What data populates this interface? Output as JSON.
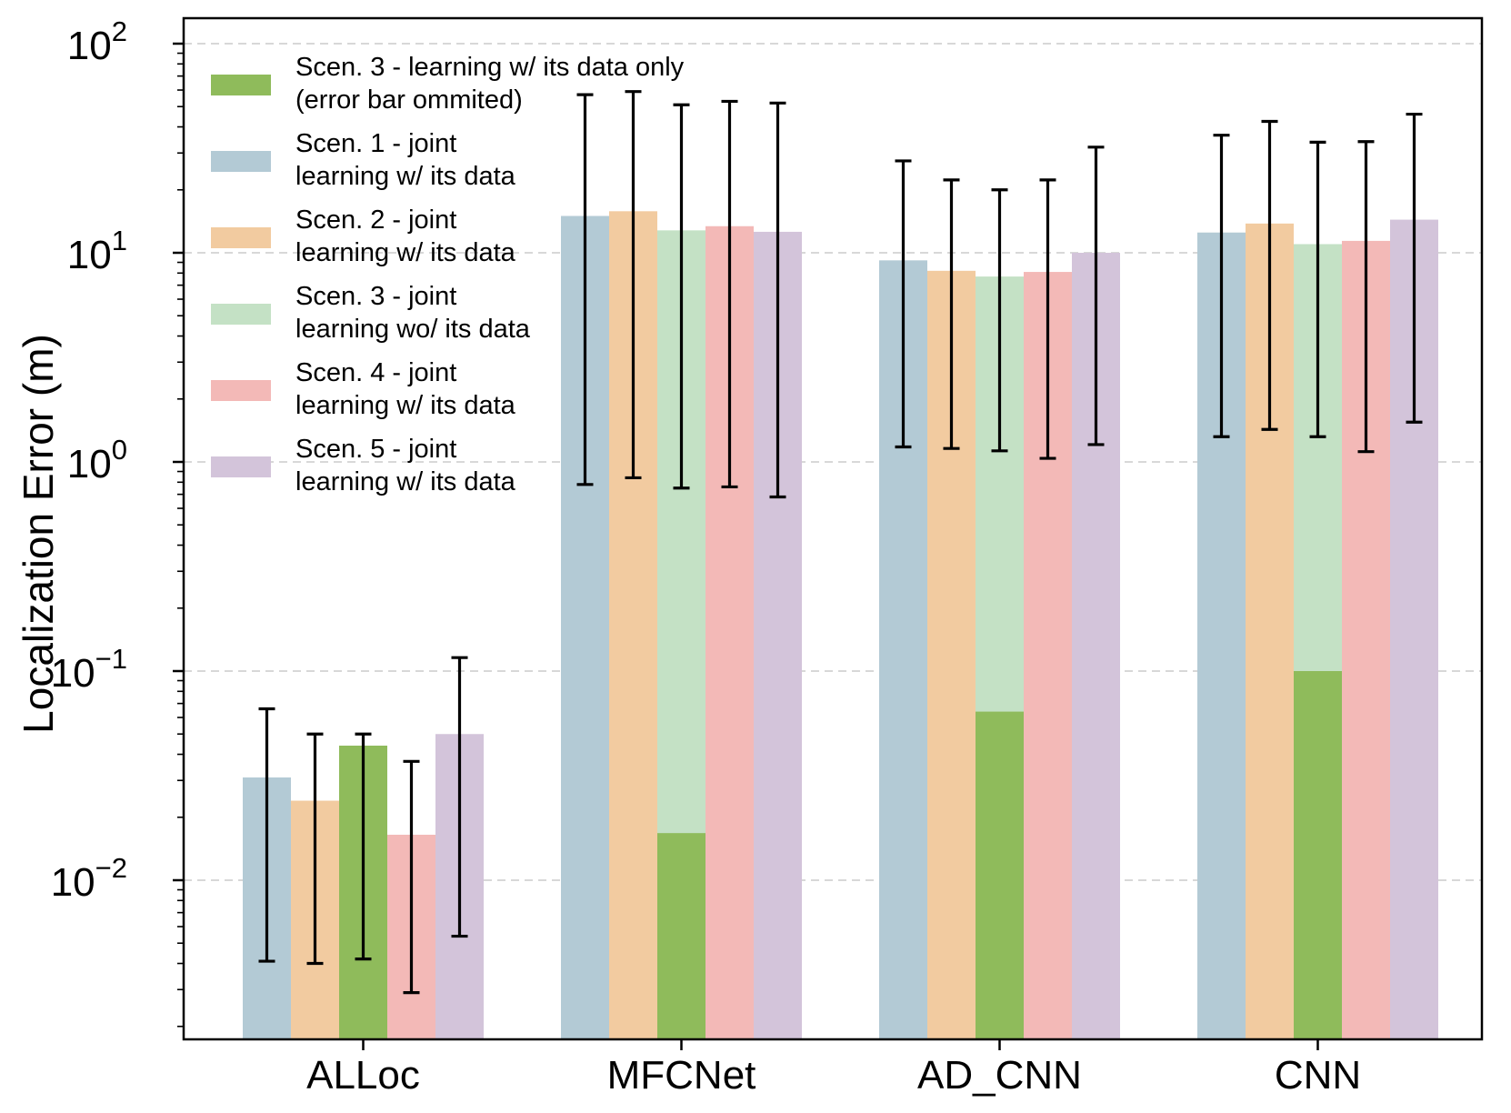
{
  "chart_data": {
    "type": "bar",
    "title": "",
    "xlabel": "",
    "ylabel": "Localization Error (m)",
    "yscale": "log",
    "ylim": [
      0.0018,
      100
    ],
    "grid": "horizontal dashed",
    "legend_placement": "top-left",
    "categories": [
      "ALLoc",
      "MFCNet",
      "AD_CNN",
      "CNN"
    ],
    "y_ticks": [
      {
        "value": 0.01,
        "base": "10",
        "exp": "−2"
      },
      {
        "value": 0.1,
        "base": "10",
        "exp": "−1"
      },
      {
        "value": 1,
        "base": "10",
        "exp": "0"
      },
      {
        "value": 10,
        "base": "10",
        "exp": "1"
      },
      {
        "value": 100,
        "base": "10",
        "exp": "2"
      }
    ],
    "series": [
      {
        "name": "Scen. 1 - joint learning w/ its data",
        "legend_lines": [
          "Scen. 1 - joint",
          "learning w/ its data"
        ],
        "color": "#b3cad5",
        "slot": 0,
        "values": [
          0.031,
          15,
          9.2,
          12.5
        ],
        "err_low": [
          0.0041,
          0.78,
          1.18,
          1.32
        ],
        "err_high": [
          0.066,
          57,
          27.5,
          36.5
        ]
      },
      {
        "name": "Scen. 2 - joint learning w/ its data",
        "legend_lines": [
          "Scen. 2 - joint",
          "learning w/ its data"
        ],
        "color": "#f2cba0",
        "slot": 1,
        "values": [
          0.024,
          15.8,
          8.2,
          13.8
        ],
        "err_low": [
          0.004,
          0.84,
          1.16,
          1.43
        ],
        "err_high": [
          0.05,
          59,
          22.3,
          42.5
        ]
      },
      {
        "name": "Scen. 3 - joint learning wo/ its data",
        "legend_lines": [
          "Scen. 3 - joint",
          "learning wo/ its data"
        ],
        "color": "#c4e1c5",
        "slot": 2,
        "values": [
          0.025,
          12.8,
          7.7,
          11
        ],
        "err_low": [
          0.0042,
          0.75,
          1.13,
          1.32
        ],
        "err_high": [
          0.05,
          51,
          20,
          33.8
        ]
      },
      {
        "name": "Scen. 4 - joint learning w/ its data",
        "legend_lines": [
          "Scen. 4 - joint",
          "learning w/ its data"
        ],
        "color": "#f3b9b7",
        "slot": 3,
        "values": [
          0.0165,
          13.4,
          8.1,
          11.4
        ],
        "err_low": [
          0.0029,
          0.76,
          1.04,
          1.12
        ],
        "err_high": [
          0.037,
          53,
          22.3,
          34
        ]
      },
      {
        "name": "Scen. 5 - joint learning w/ its data",
        "legend_lines": [
          "Scen. 5 - joint",
          "learning w/ its data"
        ],
        "color": "#d3c4da",
        "slot": 4,
        "values": [
          0.05,
          12.6,
          10,
          14.4
        ],
        "err_low": [
          0.0054,
          0.68,
          1.21,
          1.55
        ],
        "err_high": [
          0.116,
          52,
          32,
          46
        ]
      },
      {
        "name": "Scen. 3 - learning w/ its data only (error bar ommited)",
        "legend_lines": [
          "Scen. 3 - learning w/ its data only",
          "(error bar ommited)"
        ],
        "color": "#8fbb5b",
        "slot": 2,
        "overlay": true,
        "values": [
          0.044,
          0.0168,
          0.064,
          0.1
        ]
      }
    ]
  }
}
